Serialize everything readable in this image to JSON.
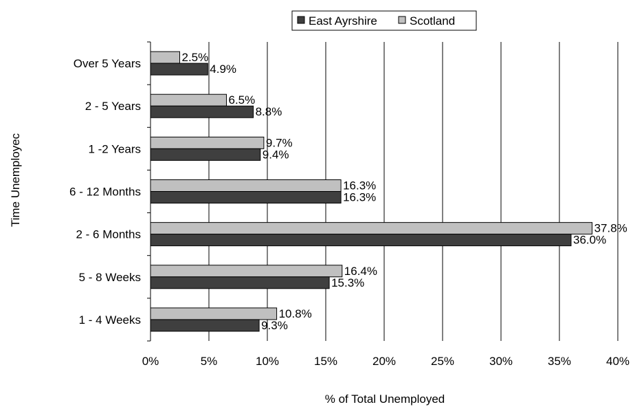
{
  "chart_data": {
    "type": "bar",
    "orientation": "horizontal",
    "title": "",
    "xlabel": "% of Total Unemployed",
    "ylabel": "Time Unemployec",
    "xlim": [
      0,
      40
    ],
    "x_ticks": [
      "0%",
      "5%",
      "10%",
      "15%",
      "20%",
      "25%",
      "30%",
      "35%",
      "40%"
    ],
    "categories": [
      "Over 5 Years",
      "2 - 5 Years",
      "1 -2 Years",
      "6 - 12 Months",
      "2 - 6 Months",
      "5 - 8 Weeks",
      "1 - 4 Weeks"
    ],
    "series": [
      {
        "name": "East Ayrshire",
        "color": "#3f3f3f",
        "values": [
          4.9,
          8.8,
          9.4,
          16.3,
          36.0,
          15.3,
          9.3
        ],
        "labels": [
          "4.9%",
          "8.8%",
          "9.4%",
          "16.3%",
          "36.0%",
          "15.3%",
          "9.3%"
        ]
      },
      {
        "name": "Scotland",
        "color": "#c0c0c0",
        "values": [
          2.5,
          6.5,
          9.7,
          16.3,
          37.8,
          16.4,
          10.8
        ],
        "labels": [
          "2.5%",
          "6.5%",
          "9.7%",
          "16.3%",
          "37.8%",
          "16.4%",
          "10.8%"
        ]
      }
    ],
    "grid": true,
    "legend_position": "top"
  }
}
